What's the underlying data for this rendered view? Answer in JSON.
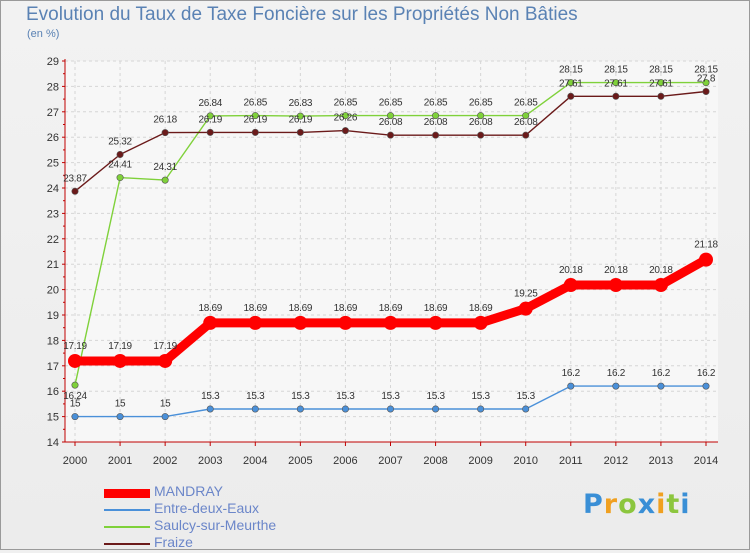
{
  "chart_data": {
    "type": "line",
    "title": "Evolution du Taux de Taxe Foncière sur les Propriétés Non Bâties",
    "subtitle": "(en %)",
    "xlabel": "",
    "ylabel": "(en %)",
    "ylim": [
      14,
      29
    ],
    "yticks": [
      14,
      15,
      16,
      17,
      18,
      19,
      20,
      21,
      22,
      23,
      24,
      25,
      26,
      27,
      28,
      29
    ],
    "x": [
      2000,
      2001,
      2002,
      2003,
      2004,
      2005,
      2006,
      2007,
      2008,
      2009,
      2010,
      2011,
      2012,
      2013,
      2014
    ],
    "grid": true,
    "legend_position": "bottom-left",
    "series": [
      {
        "name": "MANDRAY",
        "color": "#ff0000",
        "values": [
          17.19,
          17.19,
          17.19,
          18.69,
          18.69,
          18.69,
          18.69,
          18.69,
          18.69,
          18.69,
          19.25,
          20.18,
          20.18,
          20.18,
          21.18
        ],
        "labels": [
          "17.19",
          "17.19",
          "17.19",
          "18.69",
          "18.69",
          "18.69",
          "18.69",
          "18.69",
          "18.69",
          "18.69",
          "19.25",
          "20.18",
          "20.18",
          "20.18",
          "21.18"
        ]
      },
      {
        "name": "Entre-deux-Eaux",
        "color": "#4a90d9",
        "values": [
          15,
          15,
          15,
          15.3,
          15.3,
          15.3,
          15.3,
          15.3,
          15.3,
          15.3,
          15.3,
          16.2,
          16.2,
          16.2,
          16.2
        ],
        "labels": [
          "15",
          "15",
          "15",
          "15.3",
          "15.3",
          "15.3",
          "15.3",
          "15.3",
          "15.3",
          "15.3",
          "15.3",
          "16.2",
          "16.2",
          "16.2",
          "16.2"
        ]
      },
      {
        "name": "Saulcy-sur-Meurthe",
        "color": "#7fd13a",
        "values": [
          16.24,
          24.41,
          24.31,
          26.84,
          26.85,
          26.83,
          26.85,
          26.85,
          26.85,
          26.85,
          26.85,
          28.15,
          28.15,
          28.15,
          28.15
        ],
        "labels": [
          "16.24",
          "24.41",
          "24.31",
          "26.84",
          "26.85",
          "26.83",
          "26.85",
          "26.85",
          "26.85",
          "26.85",
          "26.85",
          "28.15",
          "28.15",
          "28.15",
          "28.15"
        ]
      },
      {
        "name": "Fraize",
        "color": "#6b1a1a",
        "values": [
          23.87,
          25.32,
          26.18,
          26.19,
          26.19,
          26.19,
          26.26,
          26.08,
          26.08,
          26.08,
          26.08,
          27.61,
          27.61,
          27.61,
          27.8
        ],
        "labels": [
          "23.87",
          "25.32",
          "26.18",
          "26.19",
          "26.19",
          "26.19",
          "26.26",
          "26.08",
          "26.08",
          "26.08",
          "26.08",
          "27.61",
          "27.61",
          "27.61",
          "27.8"
        ]
      }
    ]
  },
  "logo": {
    "letters": [
      "P",
      "r",
      "o",
      "x",
      "i",
      "t",
      "i"
    ],
    "colors": [
      "#3a8fd6",
      "#f0a020",
      "#8cc63e",
      "#3a8fd6",
      "#f0a020",
      "#8cc63e",
      "#3a8fd6"
    ]
  }
}
